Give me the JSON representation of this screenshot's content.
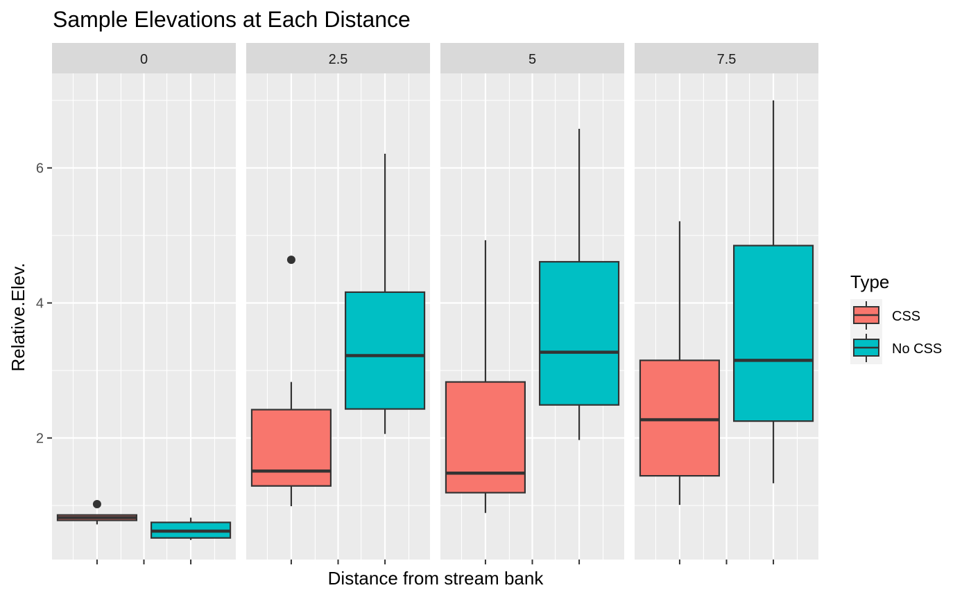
{
  "chart_data": {
    "type": "boxplot",
    "title": "Sample Elevations at Each Distance",
    "xlabel": "Distance from stream bank",
    "ylabel": "Relative.Elev.",
    "ylim": [
      0.2,
      7.4
    ],
    "y_ticks": [
      2,
      4,
      6
    ],
    "facet_variable": "Distance",
    "facets": [
      "0",
      "2.5",
      "5",
      "7.5"
    ],
    "grid": true,
    "legend": {
      "title": "Type",
      "position": "right",
      "entries": [
        {
          "label": "CSS",
          "color": "#F8766D"
        },
        {
          "label": "No CSS",
          "color": "#00BFC4"
        }
      ]
    },
    "boxes": [
      {
        "facet": "0",
        "type": "CSS",
        "whisker_low": 0.72,
        "q1": 0.78,
        "median": 0.82,
        "q3": 0.86,
        "whisker_high": 0.86,
        "outliers": [
          1.02
        ]
      },
      {
        "facet": "0",
        "type": "No CSS",
        "whisker_low": 0.49,
        "q1": 0.52,
        "median": 0.62,
        "q3": 0.75,
        "whisker_high": 0.82,
        "outliers": []
      },
      {
        "facet": "2.5",
        "type": "CSS",
        "whisker_low": 0.99,
        "q1": 1.29,
        "median": 1.51,
        "q3": 2.42,
        "whisker_high": 2.83,
        "outliers": [
          4.64
        ]
      },
      {
        "facet": "2.5",
        "type": "No CSS",
        "whisker_low": 2.06,
        "q1": 2.43,
        "median": 3.22,
        "q3": 4.16,
        "whisker_high": 6.21,
        "outliers": []
      },
      {
        "facet": "5",
        "type": "CSS",
        "whisker_low": 0.89,
        "q1": 1.19,
        "median": 1.48,
        "q3": 2.83,
        "whisker_high": 4.93,
        "outliers": []
      },
      {
        "facet": "5",
        "type": "No CSS",
        "whisker_low": 1.97,
        "q1": 2.49,
        "median": 3.27,
        "q3": 4.61,
        "whisker_high": 6.58,
        "outliers": []
      },
      {
        "facet": "7.5",
        "type": "CSS",
        "whisker_low": 1.01,
        "q1": 1.44,
        "median": 2.27,
        "q3": 3.15,
        "whisker_high": 5.21,
        "outliers": []
      },
      {
        "facet": "7.5",
        "type": "No CSS",
        "whisker_low": 1.33,
        "q1": 2.25,
        "median": 3.15,
        "q3": 4.85,
        "whisker_high": 7.0,
        "outliers": []
      }
    ]
  },
  "colors": {
    "panel_background": "#EBEBEB",
    "strip_background": "#D9D9D9",
    "grid_line": "#FFFFFF",
    "box_outline": "#333333",
    "tick_text": "#4D4D4D"
  }
}
